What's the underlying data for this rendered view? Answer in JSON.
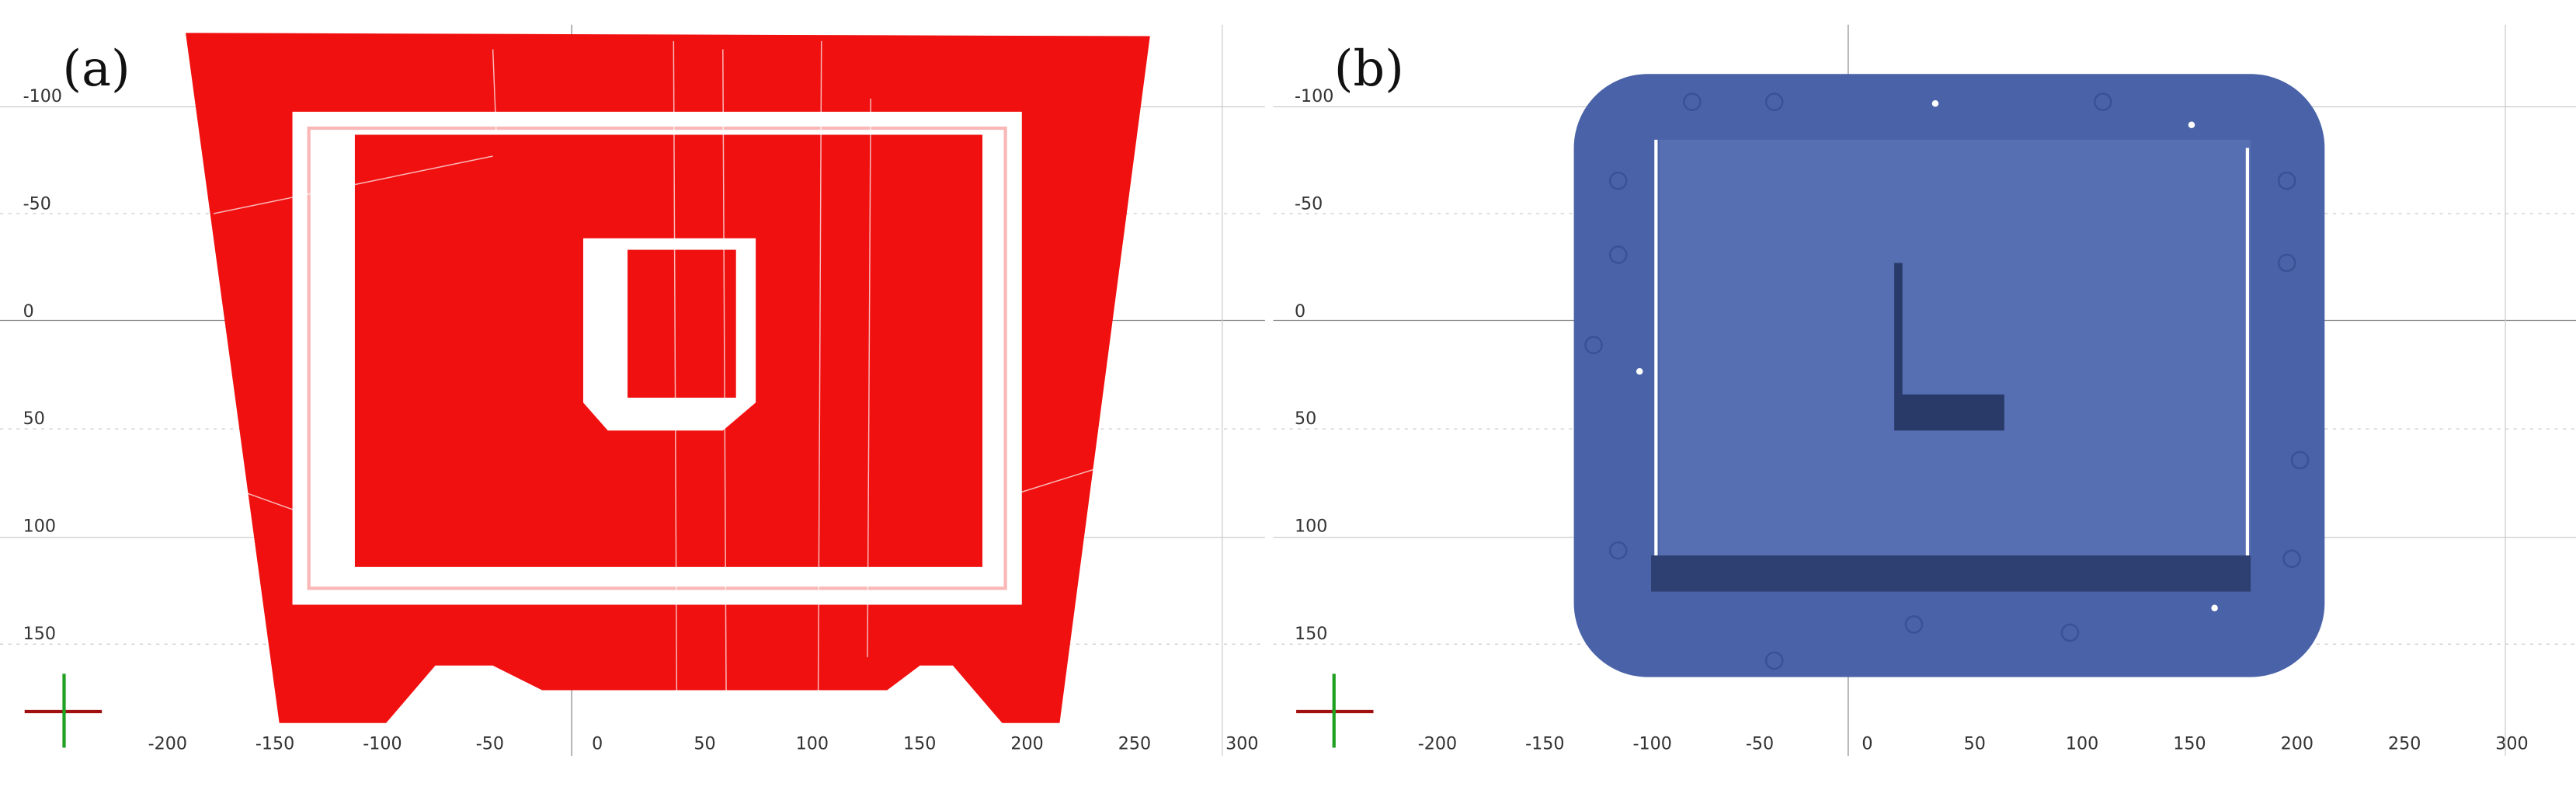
{
  "panels": [
    {
      "label": "(a)",
      "x_tick_labels": [
        "-200",
        "-150",
        "-100",
        "-50",
        "0",
        "50",
        "100",
        "150",
        "200",
        "250",
        "300"
      ],
      "y_tick_labels": [
        "-100",
        "-50",
        "0",
        "50",
        "100",
        "150"
      ]
    },
    {
      "label": "(b)",
      "x_tick_labels": [
        "-200",
        "-150",
        "-100",
        "-50",
        "0",
        "50",
        "100",
        "150",
        "200",
        "250",
        "300"
      ],
      "y_tick_labels": [
        "-100",
        "-50",
        "0",
        "50",
        "100",
        "150"
      ]
    }
  ]
}
